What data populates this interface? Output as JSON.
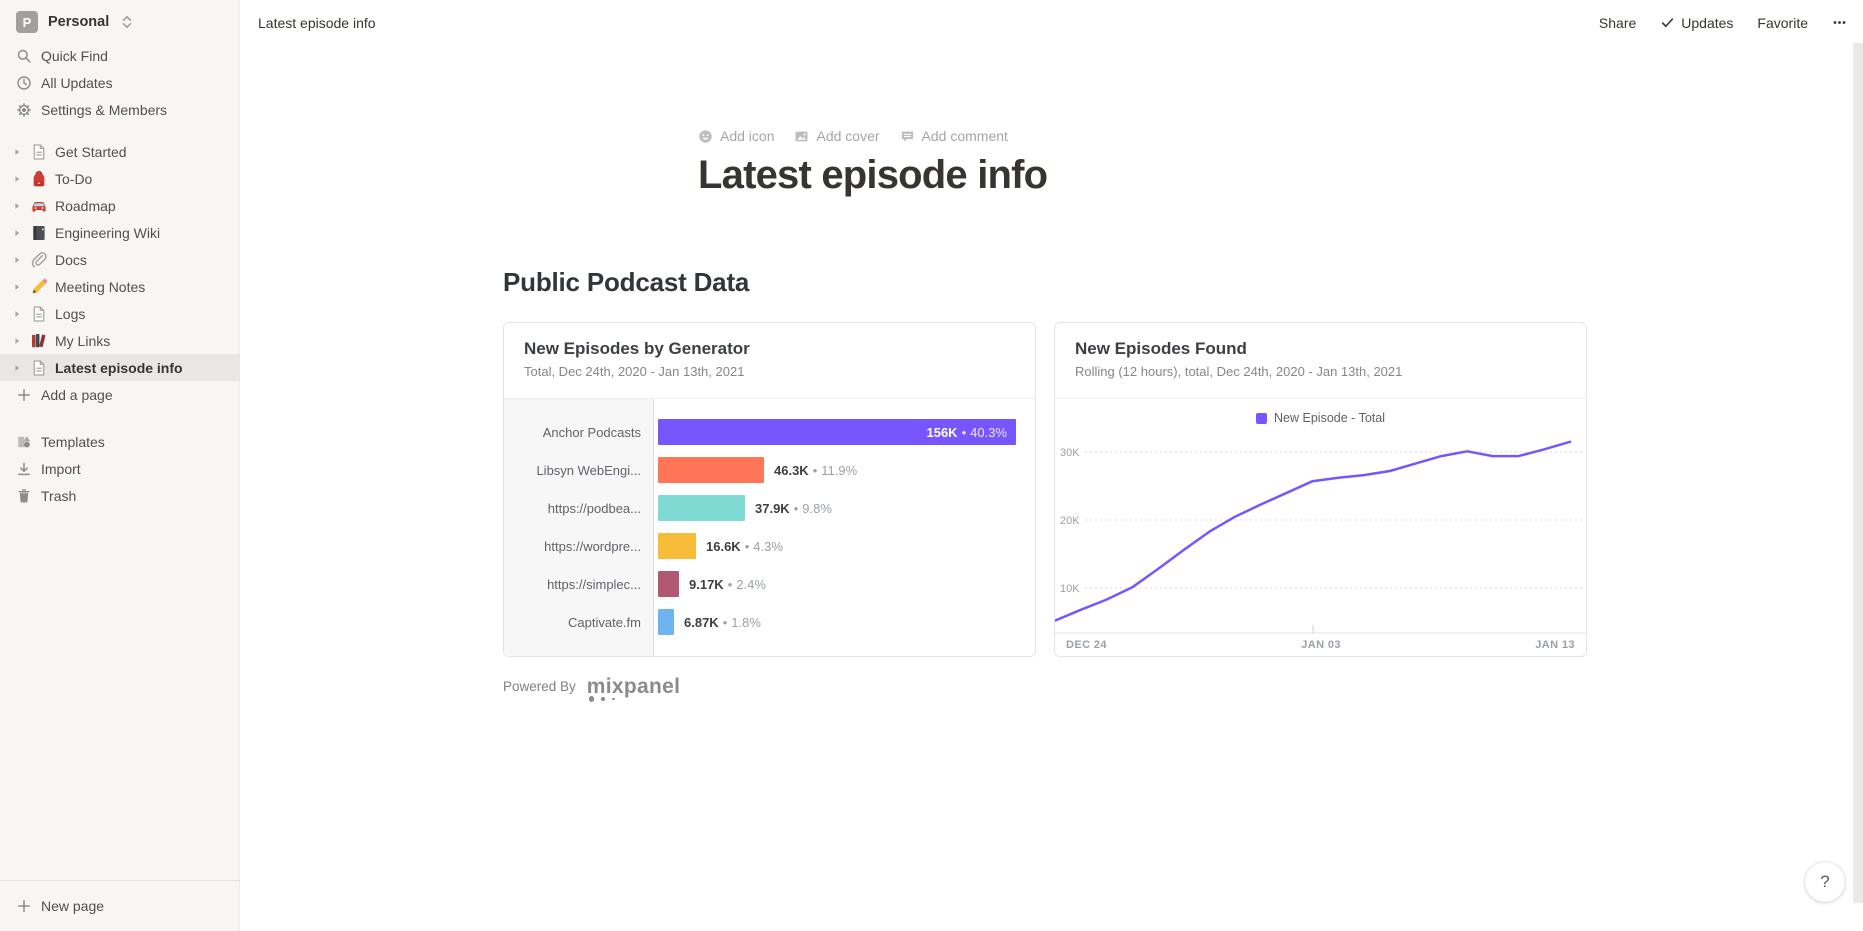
{
  "workspace": {
    "name": "Personal",
    "avatar_letter": "P"
  },
  "sidebar": {
    "top_items": [
      {
        "label": "Quick Find",
        "icon": "search-icon"
      },
      {
        "label": "All Updates",
        "icon": "clock-icon"
      },
      {
        "label": "Settings & Members",
        "icon": "gear-icon"
      }
    ],
    "pages": [
      {
        "label": "Get Started",
        "icon": "page-icon"
      },
      {
        "label": "To-Do",
        "icon": "backpack-icon"
      },
      {
        "label": "Roadmap",
        "icon": "car-icon"
      },
      {
        "label": "Engineering Wiki",
        "icon": "notebook-icon"
      },
      {
        "label": "Docs",
        "icon": "paperclip-icon"
      },
      {
        "label": "Meeting Notes",
        "icon": "pencil-icon"
      },
      {
        "label": "Logs",
        "icon": "page-icon"
      },
      {
        "label": "My Links",
        "icon": "books-icon"
      },
      {
        "label": "Latest episode info",
        "icon": "page-icon",
        "selected": true
      }
    ],
    "add_page_label": "Add a page",
    "bottom_items": [
      {
        "label": "Templates",
        "icon": "templates-icon"
      },
      {
        "label": "Import",
        "icon": "import-icon"
      },
      {
        "label": "Trash",
        "icon": "trash-icon"
      }
    ],
    "new_page_label": "New page"
  },
  "topbar": {
    "breadcrumb": "Latest episode info",
    "actions": [
      {
        "label": "Share"
      },
      {
        "label": "Updates",
        "icon": "check-icon"
      },
      {
        "label": "Favorite"
      },
      {
        "label": "",
        "icon": "ellipsis-icon"
      }
    ]
  },
  "page": {
    "add_icon": "Add icon",
    "add_cover": "Add cover",
    "add_comment": "Add comment",
    "title": "Latest episode info",
    "section_heading": "Public Podcast Data",
    "powered_by": "Powered By",
    "mixpanel_wordmark": "mixpanel",
    "help_label": "?"
  },
  "chart_data": [
    {
      "type": "bar",
      "orientation": "horizontal",
      "title": "New Episodes by Generator",
      "subtitle": "Total, Dec 24th, 2020 - Jan 13th, 2021",
      "categories": [
        "Anchor Podcasts",
        "Libsyn WebEngi...",
        "https://podbea...",
        "https://wordpre...",
        "https://simplec...",
        "Captivate.fm"
      ],
      "values": [
        156000,
        46300,
        37900,
        16600,
        9170,
        6870
      ],
      "value_labels": [
        "156K",
        "46.3K",
        "37.9K",
        "16.6K",
        "9.17K",
        "6.87K"
      ],
      "percent_labels": [
        "40.3%",
        "11.9%",
        "9.8%",
        "4.3%",
        "2.4%",
        "1.8%"
      ],
      "value_separator": "•",
      "bar_colors": [
        "#7856ff",
        "#ff7557",
        "#7edad2",
        "#f8bc3b",
        "#b25971",
        "#6db4f1"
      ],
      "xlim": [
        0,
        156000
      ]
    },
    {
      "type": "line",
      "title": "New Episodes Found",
      "subtitle": "Rolling (12 hours), total, Dec 24th, 2020 - Jan 13th, 2021",
      "legend": [
        {
          "label": "New Episode - Total",
          "color": "#7856ff"
        }
      ],
      "line_color": "#7856ff",
      "grid": "horizontal-dashed",
      "yticks": [
        {
          "label": "10K",
          "value": 10000
        },
        {
          "label": "20K",
          "value": 20000
        },
        {
          "label": "30K",
          "value": 30000
        }
      ],
      "xticks": [
        "DEC 24",
        "JAN 03",
        "JAN 13"
      ],
      "x_range": [
        "Dec 24th, 2020",
        "Jan 13th, 2021"
      ],
      "values": [
        5200,
        6800,
        8300,
        10100,
        12800,
        15600,
        18300,
        20500,
        22300,
        24000,
        25700,
        26200,
        26600,
        27200,
        28300,
        29400,
        30100,
        29400,
        29400,
        30400,
        31500
      ],
      "ylim": [
        3500,
        33000
      ]
    }
  ]
}
